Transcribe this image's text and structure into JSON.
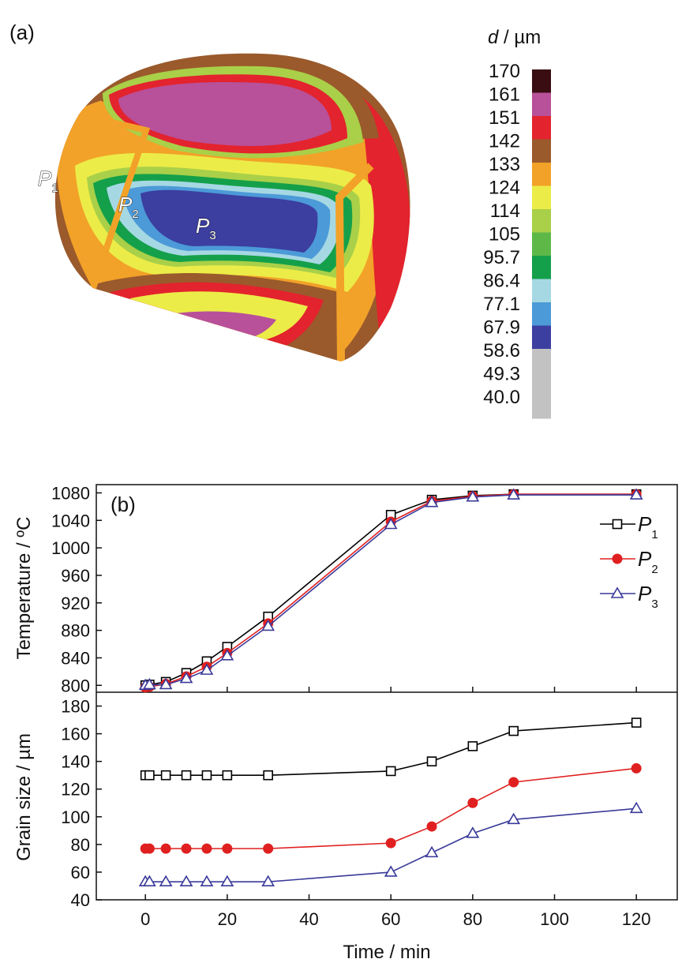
{
  "panel_a": {
    "label": "(a)",
    "colorbar_title_var": "d",
    "colorbar_title_unit": " / µm",
    "colorbar": [
      {
        "value": "170",
        "color": "#3a0d12"
      },
      {
        "value": "161",
        "color": "#b8509a"
      },
      {
        "value": "151",
        "color": "#e3232d"
      },
      {
        "value": "142",
        "color": "#9a5a2c"
      },
      {
        "value": "133",
        "color": "#f2a228"
      },
      {
        "value": "124",
        "color": "#ecec48"
      },
      {
        "value": "114",
        "color": "#a9d048"
      },
      {
        "value": "105",
        "color": "#5db848"
      },
      {
        "value": "95.7",
        "color": "#14a04a"
      },
      {
        "value": "86.4",
        "color": "#a6d8e4"
      },
      {
        "value": "77.1",
        "color": "#4c9ad8"
      },
      {
        "value": "67.9",
        "color": "#3c3ea0"
      },
      {
        "value": "58.6",
        "color": "#c2c2c2"
      },
      {
        "value": "49.3",
        "color": "#c2c2c2"
      },
      {
        "value": "40.0",
        "color": "#c2c2c2"
      }
    ],
    "points": [
      {
        "name": "P",
        "sub": "1"
      },
      {
        "name": "P",
        "sub": "2"
      },
      {
        "name": "P",
        "sub": "3"
      }
    ]
  },
  "chart_data": [
    {
      "type": "line",
      "panel": "(b) top",
      "title": "",
      "xlabel": "",
      "ylabel": "Temperature / ºC",
      "xlim": [
        -12,
        130
      ],
      "ylim": [
        790,
        1092
      ],
      "yticks": [
        800,
        840,
        880,
        920,
        960,
        1000,
        1040,
        1080
      ],
      "series": [
        {
          "name": "P1",
          "color": "#000000",
          "marker": "square-open",
          "x": [
            0,
            1,
            5,
            10,
            15,
            20,
            30,
            60,
            70,
            80,
            90,
            120
          ],
          "y": [
            800,
            801,
            805,
            818,
            835,
            856,
            900,
            1048,
            1070,
            1076,
            1078,
            1078
          ]
        },
        {
          "name": "P2",
          "color": "#e02020",
          "marker": "circle-filled",
          "x": [
            0,
            1,
            5,
            10,
            15,
            20,
            30,
            60,
            70,
            80,
            90,
            120
          ],
          "y": [
            797,
            798,
            802,
            813,
            827,
            847,
            890,
            1038,
            1068,
            1075,
            1078,
            1078
          ]
        },
        {
          "name": "P3",
          "color": "#3a3a9a",
          "marker": "triangle-open",
          "x": [
            0,
            1,
            5,
            10,
            15,
            20,
            30,
            60,
            70,
            80,
            90,
            120
          ],
          "y": [
            800,
            801,
            801,
            810,
            822,
            843,
            886,
            1034,
            1066,
            1074,
            1077,
            1077
          ]
        }
      ],
      "legend": "right"
    },
    {
      "type": "line",
      "panel": "(b) bottom",
      "title": "",
      "xlabel": "Time / min",
      "ylabel": "Grain size / µm",
      "xlim": [
        -12,
        130
      ],
      "ylim": [
        40,
        190
      ],
      "xticks": [
        0,
        20,
        40,
        60,
        80,
        100,
        120
      ],
      "yticks": [
        40,
        60,
        80,
        100,
        120,
        140,
        160,
        180
      ],
      "series": [
        {
          "name": "P1",
          "color": "#000000",
          "marker": "square-open",
          "x": [
            0,
            1,
            5,
            10,
            15,
            20,
            30,
            60,
            70,
            80,
            90,
            120
          ],
          "y": [
            130,
            130,
            130,
            130,
            130,
            130,
            130,
            133,
            140,
            151,
            162,
            168
          ]
        },
        {
          "name": "P2",
          "color": "#e02020",
          "marker": "circle-filled",
          "x": [
            0,
            1,
            5,
            10,
            15,
            20,
            30,
            60,
            70,
            80,
            90,
            120
          ],
          "y": [
            77,
            77,
            77,
            77,
            77,
            77,
            77,
            81,
            93,
            110,
            125,
            135
          ]
        },
        {
          "name": "P3",
          "color": "#3a3a9a",
          "marker": "triangle-open",
          "x": [
            0,
            1,
            5,
            10,
            15,
            20,
            30,
            60,
            70,
            80,
            90,
            120
          ],
          "y": [
            53,
            53,
            53,
            53,
            53,
            53,
            53,
            60,
            74,
            88,
            98,
            106
          ]
        }
      ]
    }
  ],
  "panel_b": {
    "label": "(b)",
    "legend": [
      {
        "name": "P",
        "sub": "1"
      },
      {
        "name": "P",
        "sub": "2"
      },
      {
        "name": "P",
        "sub": "3"
      }
    ]
  }
}
